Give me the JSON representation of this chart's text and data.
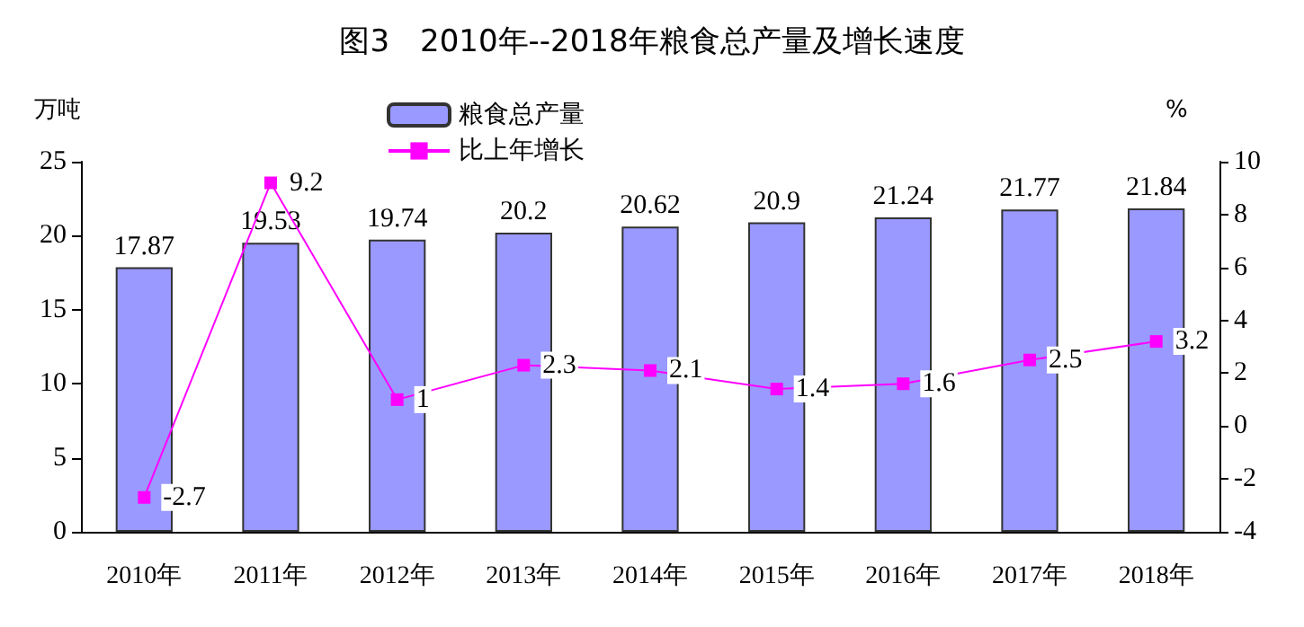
{
  "chart_data": {
    "type": "bar",
    "title": "图3　2010年--2018年粮食总产量及增长速度",
    "ylabel": "万吨",
    "y2label": "%",
    "categories": [
      "2010年",
      "2011年",
      "2012年",
      "2013年",
      "2014年",
      "2015年",
      "2016年",
      "2017年",
      "2018年"
    ],
    "series": [
      {
        "name": "粮食总产量",
        "color": "#9999ff",
        "values": [
          17.87,
          19.53,
          19.74,
          20.2,
          20.62,
          20.9,
          21.24,
          21.77,
          21.84
        ]
      },
      {
        "name": "比上年增长",
        "type": "line",
        "axis": "y2",
        "color": "#ff00ff",
        "values": [
          -2.7,
          9.2,
          1,
          2.3,
          2.1,
          1.4,
          1.6,
          2.5,
          3.2
        ]
      }
    ],
    "ylim": [
      0,
      25
    ],
    "yticks": [
      0,
      5,
      10,
      15,
      20,
      25
    ],
    "y2lim": [
      -4,
      10
    ],
    "y2ticks": [
      -4,
      -2,
      0,
      2,
      4,
      6,
      8,
      10
    ],
    "data_labels": true,
    "grid": false,
    "legend": "top",
    "marker": "square",
    "line_style": "solid"
  }
}
